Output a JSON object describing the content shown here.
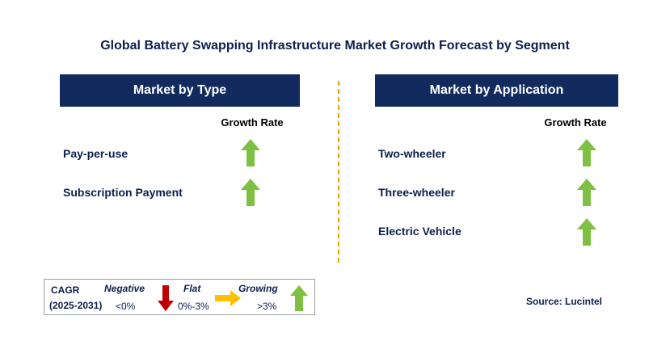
{
  "title": "Global Battery Swapping Infrastructure Market Growth Forecast by Segment",
  "colors": {
    "header_bg": "#122a5e",
    "growing_arrow": "#7ec142",
    "negative_arrow": "#c00000",
    "flat_arrow": "#ffc000",
    "divider": "#f0a500"
  },
  "type_panel": {
    "header": "Market by Type",
    "growth_rate_label": "Growth Rate",
    "rows": [
      {
        "label": "Pay-per-use",
        "trend": "growing",
        "icon": "up-arrow-icon"
      },
      {
        "label": "Subscription Payment",
        "trend": "growing",
        "icon": "up-arrow-icon"
      }
    ]
  },
  "application_panel": {
    "header": "Market by Application",
    "growth_rate_label": "Growth Rate",
    "rows": [
      {
        "label": "Two-wheeler",
        "trend": "growing",
        "icon": "up-arrow-icon"
      },
      {
        "label": "Three-wheeler",
        "trend": "growing",
        "icon": "up-arrow-icon"
      },
      {
        "label": "Electric Vehicle",
        "trend": "growing",
        "icon": "up-arrow-icon"
      }
    ]
  },
  "legend": {
    "cagr_label": "CAGR",
    "period": "(2025-2031)",
    "negative": {
      "label": "Negative",
      "range": "<0%"
    },
    "flat": {
      "label": "Flat",
      "range": "0%-3%"
    },
    "growing": {
      "label": "Growing",
      "range": ">3%"
    }
  },
  "source": "Source: Lucintel"
}
